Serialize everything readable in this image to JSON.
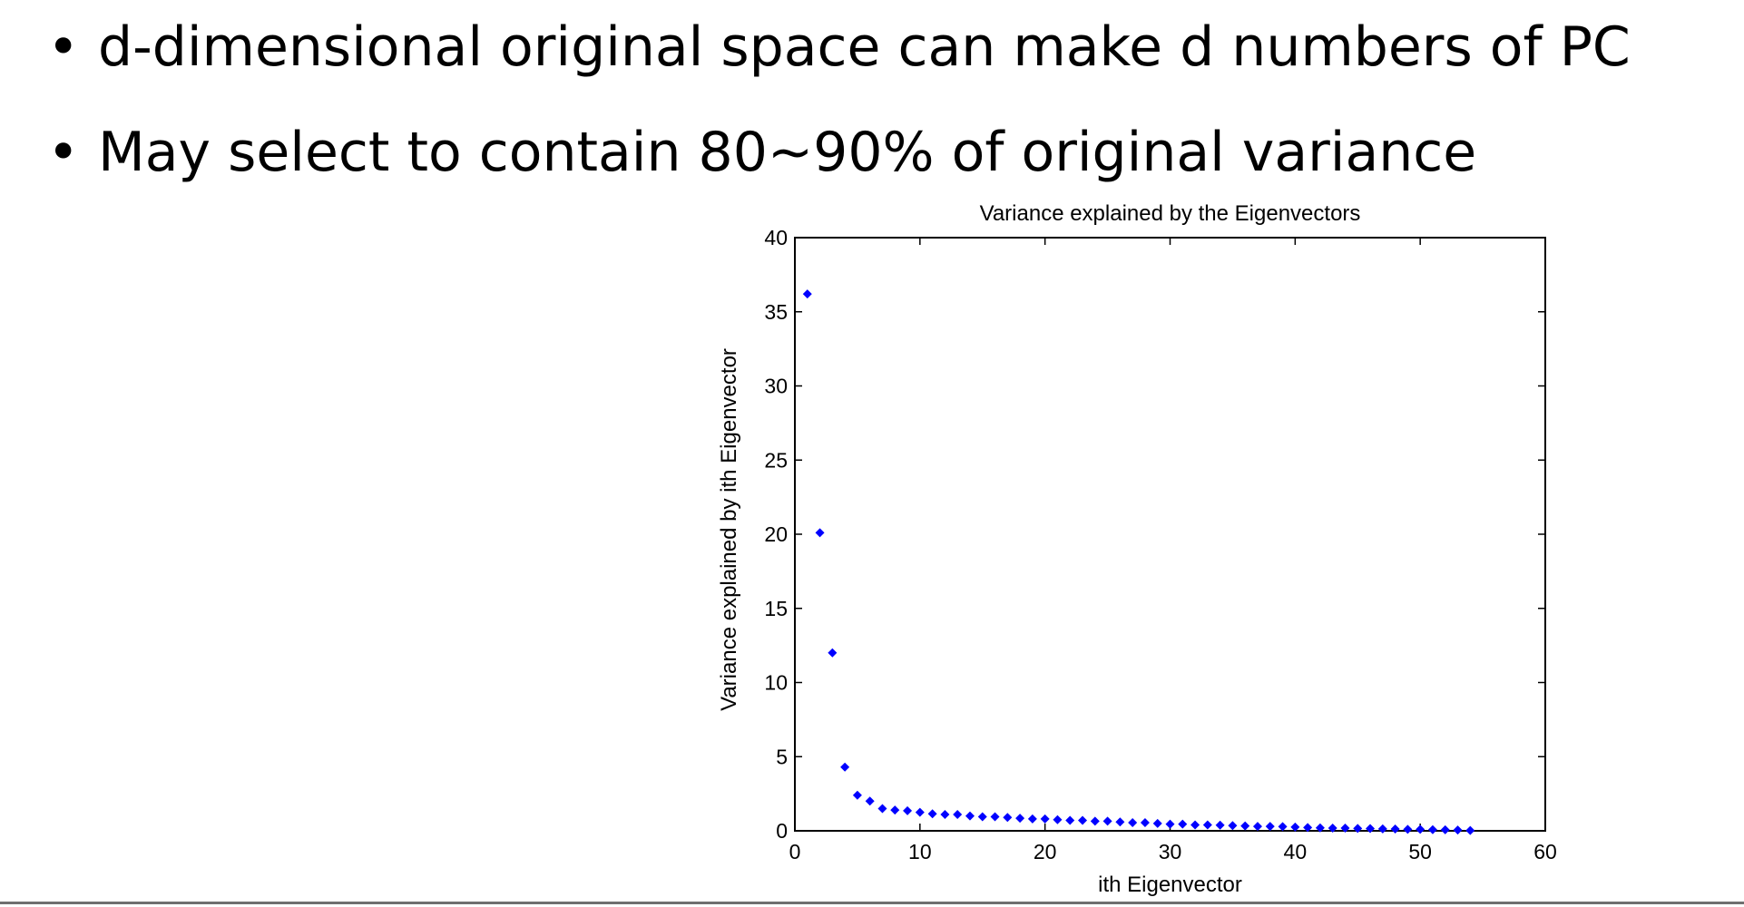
{
  "bullets": [
    {
      "marker": "•",
      "text": "d-dimensional original space can make d numbers of PC"
    },
    {
      "marker": "•",
      "text": "May select to contain 80~90% of original variance"
    }
  ],
  "colors": {
    "marker": "#0000ff",
    "axis": "#000000",
    "text": "#000000",
    "divider": "#6f6f6f"
  },
  "chart_data": {
    "type": "scatter",
    "title": "Variance explained by the Eigenvectors",
    "xlabel": "ith Eigenvector",
    "ylabel": "Variance explained by ith Eigenvector",
    "xlim": [
      0,
      60
    ],
    "ylim": [
      0,
      40
    ],
    "xticks": [
      "0",
      "10",
      "20",
      "30",
      "40",
      "50",
      "60"
    ],
    "yticks": [
      "0",
      "5",
      "10",
      "15",
      "20",
      "25",
      "30",
      "35",
      "40"
    ],
    "grid": false,
    "legend": "none",
    "x": [
      1,
      2,
      3,
      4,
      5,
      6,
      7,
      8,
      9,
      10,
      11,
      12,
      13,
      14,
      15,
      16,
      17,
      18,
      19,
      20,
      21,
      22,
      23,
      24,
      25,
      26,
      27,
      28,
      29,
      30,
      31,
      32,
      33,
      34,
      35,
      36,
      37,
      38,
      39,
      40,
      41,
      42,
      43,
      44,
      45,
      46,
      47,
      48,
      49,
      50,
      51,
      52,
      53,
      54
    ],
    "y": [
      36.2,
      20.1,
      12.0,
      4.3,
      2.4,
      2.0,
      1.5,
      1.4,
      1.35,
      1.25,
      1.15,
      1.1,
      1.1,
      1.0,
      0.95,
      0.95,
      0.9,
      0.85,
      0.8,
      0.8,
      0.75,
      0.7,
      0.7,
      0.65,
      0.65,
      0.6,
      0.55,
      0.55,
      0.5,
      0.45,
      0.45,
      0.4,
      0.4,
      0.38,
      0.35,
      0.33,
      0.3,
      0.3,
      0.28,
      0.25,
      0.22,
      0.2,
      0.18,
      0.18,
      0.16,
      0.15,
      0.13,
      0.12,
      0.1,
      0.1,
      0.08,
      0.07,
      0.05,
      0.02
    ]
  }
}
